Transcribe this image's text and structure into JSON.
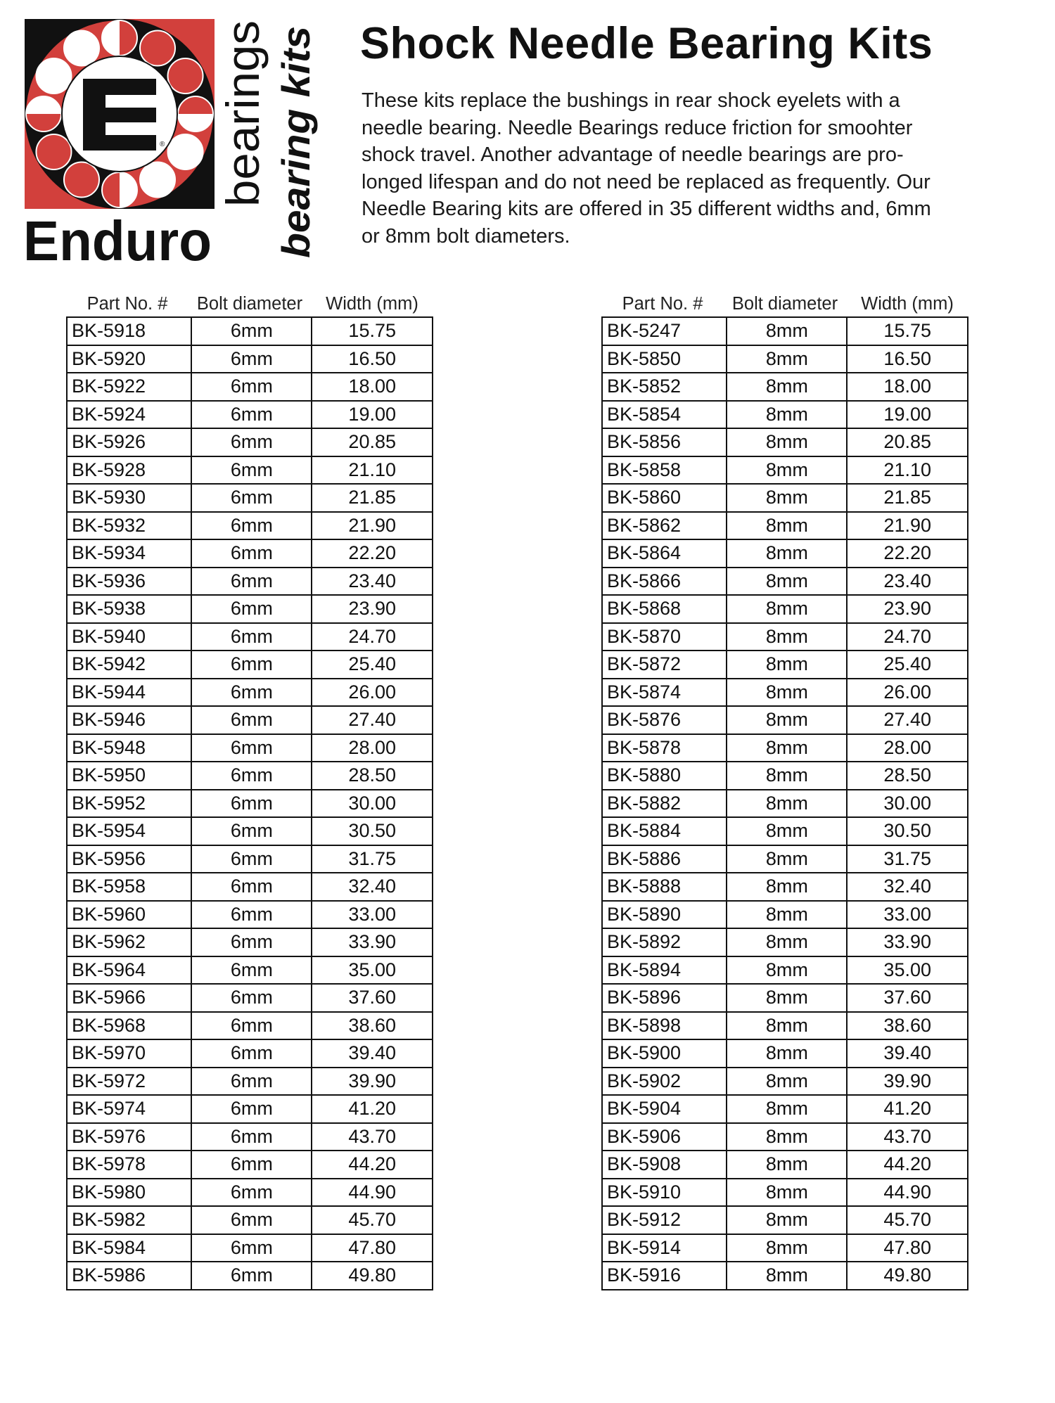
{
  "logo": {
    "brand": "Enduro",
    "word1": "bearings",
    "word2": "bearing kits",
    "letter": "E",
    "registered": "®",
    "colors": {
      "red": "#d2403c",
      "black": "#111111",
      "white": "#ffffff"
    }
  },
  "title": "Shock Needle Bearing Kits",
  "description_lines": [
    "These kits replace the bushings in rear shock eyelets with a",
    "needle bearing. Needle Bearings reduce friction for smoohter",
    "shock travel. Another advantage of needle bearings are pro-",
    "longed lifespan and do not need be replaced as frequently. Our",
    "Needle Bearing kits are offered in 35 different widths and, 6mm",
    "or 8mm bolt diameters."
  ],
  "columns": [
    "Part No. #",
    "Bolt diameter",
    "Width (mm)"
  ],
  "widths": [
    "15.75",
    "16.50",
    "18.00",
    "19.00",
    "20.85",
    "21.10",
    "21.85",
    "21.90",
    "22.20",
    "23.40",
    "23.90",
    "24.70",
    "25.40",
    "26.00",
    "27.40",
    "28.00",
    "28.50",
    "30.00",
    "30.50",
    "31.75",
    "32.40",
    "33.00",
    "33.90",
    "35.00",
    "37.60",
    "38.60",
    "39.40",
    "39.90",
    "41.20",
    "43.70",
    "44.20",
    "44.90",
    "45.70",
    "47.80",
    "49.80"
  ],
  "tables": [
    {
      "bolt": "6mm",
      "parts": [
        "BK-5918",
        "BK-5920",
        "BK-5922",
        "BK-5924",
        "BK-5926",
        "BK-5928",
        "BK-5930",
        "BK-5932",
        "BK-5934",
        "BK-5936",
        "BK-5938",
        "BK-5940",
        "BK-5942",
        "BK-5944",
        "BK-5946",
        "BK-5948",
        "BK-5950",
        "BK-5952",
        "BK-5954",
        "BK-5956",
        "BK-5958",
        "BK-5960",
        "BK-5962",
        "BK-5964",
        "BK-5966",
        "BK-5968",
        "BK-5970",
        "BK-5972",
        "BK-5974",
        "BK-5976",
        "BK-5978",
        "BK-5980",
        "BK-5982",
        "BK-5984",
        "BK-5986"
      ]
    },
    {
      "bolt": "8mm",
      "parts": [
        "BK-5247",
        "BK-5850",
        "BK-5852",
        "BK-5854",
        "BK-5856",
        "BK-5858",
        "BK-5860",
        "BK-5862",
        "BK-5864",
        "BK-5866",
        "BK-5868",
        "BK-5870",
        "BK-5872",
        "BK-5874",
        "BK-5876",
        "BK-5878",
        "BK-5880",
        "BK-5882",
        "BK-5884",
        "BK-5886",
        "BK-5888",
        "BK-5890",
        "BK-5892",
        "BK-5894",
        "BK-5896",
        "BK-5898",
        "BK-5900",
        "BK-5902",
        "BK-5904",
        "BK-5906",
        "BK-5908",
        "BK-5910",
        "BK-5912",
        "BK-5914",
        "BK-5916"
      ]
    }
  ]
}
